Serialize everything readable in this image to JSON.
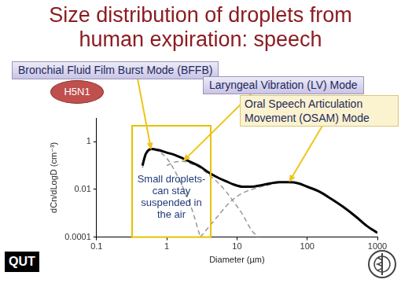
{
  "chart_data": {
    "type": "line",
    "title": "Size distribution of droplets from human expiration: speech",
    "x_label": "Diameter (µm)",
    "y_label": "dCn/dLogD (cm⁻³)",
    "log": true,
    "grid": false,
    "xlim": [
      0.1,
      1000
    ],
    "xticks": [
      0.1,
      1,
      10,
      100,
      1000
    ],
    "ylim": [
      0.0001,
      10
    ],
    "yticks": [
      0.0001,
      0.01,
      1
    ],
    "series": [
      {
        "color": "#000000",
        "line_style": "solid",
        "x": [
          0.45,
          0.5,
          0.6,
          0.75,
          1,
          1.3,
          1.7,
          2.2,
          3,
          4,
          5.5,
          7,
          9,
          12,
          16,
          22,
          30,
          40,
          55,
          75,
          100,
          150,
          220,
          330,
          500,
          700,
          1000
        ],
        "values": [
          0.1,
          0.3,
          0.5,
          0.45,
          0.35,
          0.28,
          0.2,
          0.14,
          0.09,
          0.05,
          0.03,
          0.022,
          0.016,
          0.013,
          0.013,
          0.015,
          0.018,
          0.02,
          0.02,
          0.018,
          0.013,
          0.008,
          0.004,
          0.0018,
          0.0007,
          0.0003,
          0.00015
        ]
      },
      {
        "color": "#999999",
        "line_style": "dashed",
        "x": [
          0.45,
          0.5,
          0.6,
          0.75,
          1,
          1.3,
          1.7,
          2.2,
          3
        ],
        "values": [
          0.08,
          0.25,
          0.45,
          0.4,
          0.2,
          0.06,
          0.012,
          0.002,
          0.0001
        ]
      },
      {
        "color": "#999999",
        "line_style": "dashed",
        "x": [
          1,
          1.3,
          1.7,
          2.2,
          3,
          4,
          5.5,
          7,
          9,
          12,
          16,
          20
        ],
        "values": [
          0.1,
          0.14,
          0.15,
          0.12,
          0.08,
          0.04,
          0.018,
          0.008,
          0.003,
          0.0009,
          0.0002,
          0.0001
        ]
      },
      {
        "color": "#999999",
        "line_style": "dashed",
        "x": [
          3,
          5,
          8,
          12,
          20,
          30,
          40,
          55,
          75,
          100,
          150,
          220,
          330,
          500,
          700,
          1000
        ],
        "values": [
          0.0001,
          0.0006,
          0.003,
          0.007,
          0.012,
          0.016,
          0.019,
          0.02,
          0.018,
          0.013,
          0.008,
          0.004,
          0.0018,
          0.0007,
          0.0003,
          0.00015
        ]
      }
    ],
    "annotations": [
      "Bronchial Fluid Film Burst Mode (BFFB)",
      "Laryngeal Vibration (LV) Mode",
      "Oral Speech Articulation Movement (OSAM) Mode",
      "H5N1",
      "Small droplets- can stay suspended in the air"
    ],
    "logo": "QUT"
  }
}
